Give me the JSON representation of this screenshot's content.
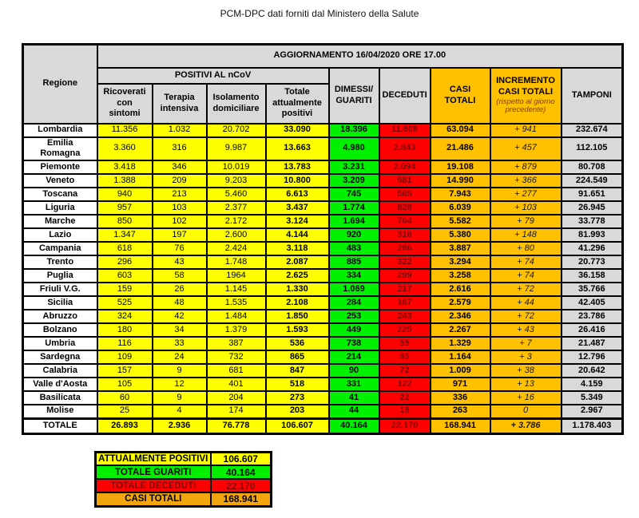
{
  "page_title": "PCM-DPC dati forniti dal Ministero della Salute",
  "colors": {
    "yellow": "#FFFF00",
    "green": "#00F000",
    "red": "#FF0000",
    "gold": "#FFC000",
    "gray": "#D9D9D9",
    "dark_red_text": "#7F0000",
    "summary_orange": "#F2A50C",
    "header_subnote_text": "#833C00"
  },
  "table": {
    "banner": "AGGIORNAMENTO 16/04/2020 ORE 17.00",
    "region_header": "Regione",
    "group_header": "POSITIVI AL nCoV",
    "headers": {
      "ricoverati": "Ricoverati con sintomi",
      "terapia": "Terapia intensiva",
      "isolamento": "Isolamento domiciliare",
      "totale_positivi": "Totale attualmente positivi",
      "dimessi": "DIMESSI/ GUARITI",
      "deceduti": "DECEDUTI",
      "casi_totali": "CASI TOTALI",
      "incremento": "INCREMENTO CASI  TOTALI",
      "incremento_note": "(rispetto al giorno precedente)",
      "tamponi": "TAMPONI"
    },
    "rows": [
      {
        "region": "Lombardia",
        "values": [
          "11.356",
          "1.032",
          "20.702",
          "33.090",
          "18.396",
          "11.608",
          "63.094",
          "+ 941",
          "232.674"
        ]
      },
      {
        "region": "Emilia Romagna",
        "values": [
          "3.360",
          "316",
          "9.987",
          "13.663",
          "4.980",
          "2.843",
          "21.486",
          "+ 457",
          "112.105"
        ]
      },
      {
        "region": "Piemonte",
        "values": [
          "3.418",
          "346",
          "10.019",
          "13.783",
          "3.231",
          "2.094",
          "19.108",
          "+ 879",
          "80.708"
        ]
      },
      {
        "region": "Veneto",
        "values": [
          "1.388",
          "209",
          "9.203",
          "10.800",
          "3.209",
          "981",
          "14.990",
          "+ 366",
          "224.549"
        ]
      },
      {
        "region": "Toscana",
        "values": [
          "940",
          "213",
          "5.460",
          "6.613",
          "745",
          "585",
          "7.943",
          "+ 277",
          "91.651"
        ]
      },
      {
        "region": "Liguria",
        "values": [
          "957",
          "103",
          "2.377",
          "3.437",
          "1.774",
          "828",
          "6.039",
          "+ 103",
          "26.945"
        ]
      },
      {
        "region": "Marche",
        "values": [
          "850",
          "102",
          "2.172",
          "3.124",
          "1.694",
          "764",
          "5.582",
          "+ 79",
          "33.778"
        ]
      },
      {
        "region": "Lazio",
        "values": [
          "1.347",
          "197",
          "2.600",
          "4.144",
          "920",
          "316",
          "5.380",
          "+ 148",
          "81.993"
        ]
      },
      {
        "region": "Campania",
        "values": [
          "618",
          "76",
          "2.424",
          "3.118",
          "483",
          "286",
          "3.887",
          "+ 80",
          "41.296"
        ]
      },
      {
        "region": "Trento",
        "values": [
          "296",
          "43",
          "1.748",
          "2.087",
          "885",
          "322",
          "3.294",
          "+ 74",
          "20.773"
        ]
      },
      {
        "region": "Puglia",
        "values": [
          "603",
          "58",
          "1964",
          "2.625",
          "334",
          "299",
          "3.258",
          "+ 74",
          "36.158"
        ]
      },
      {
        "region": "Friuli V.G.",
        "values": [
          "159",
          "26",
          "1.145",
          "1.330",
          "1.069",
          "217",
          "2.616",
          "+ 72",
          "35.766"
        ]
      },
      {
        "region": "Sicilia",
        "values": [
          "525",
          "48",
          "1.535",
          "2.108",
          "284",
          "187",
          "2.579",
          "+ 44",
          "42.405"
        ]
      },
      {
        "region": "Abruzzo",
        "values": [
          "324",
          "42",
          "1.484",
          "1.850",
          "253",
          "243",
          "2.346",
          "+ 72",
          "23.786"
        ]
      },
      {
        "region": "Bolzano",
        "values": [
          "180",
          "34",
          "1.379",
          "1.593",
          "449",
          "225",
          "2.267",
          "+ 43",
          "26.416"
        ]
      },
      {
        "region": "Umbria",
        "values": [
          "116",
          "33",
          "387",
          "536",
          "738",
          "55",
          "1.329",
          "+ 7",
          "21.487"
        ]
      },
      {
        "region": "Sardegna",
        "values": [
          "109",
          "24",
          "732",
          "865",
          "214",
          "85",
          "1.164",
          "+ 3",
          "12.796"
        ]
      },
      {
        "region": "Calabria",
        "values": [
          "157",
          "9",
          "681",
          "847",
          "90",
          "72",
          "1.009",
          "+ 38",
          "20.642"
        ]
      },
      {
        "region": "Valle d'Aosta",
        "values": [
          "105",
          "12",
          "401",
          "518",
          "331",
          "122",
          "971",
          "+ 13",
          "4.159"
        ]
      },
      {
        "region": "Basilicata",
        "values": [
          "60",
          "9",
          "204",
          "273",
          "41",
          "22",
          "336",
          "+ 16",
          "5.349"
        ]
      },
      {
        "region": "Molise",
        "values": [
          "25",
          "4",
          "174",
          "203",
          "44",
          "16",
          "263",
          "0",
          "2.967"
        ]
      }
    ],
    "totale": {
      "region": "TOTALE",
      "values": [
        "26.893",
        "2.936",
        "76.778",
        "106.607",
        "40.164",
        "22.170",
        "168.941",
        "+ 3.786",
        "1.178.403"
      ]
    }
  },
  "summary": {
    "rows": [
      {
        "label": "ATTUALMENTE POSITIVI",
        "value": "106.607",
        "bg": "#FFFF00",
        "fg": "#000000"
      },
      {
        "label": "TOTALE GUARITI",
        "value": "40.164",
        "bg": "#00F000",
        "fg": "#000000"
      },
      {
        "label": "TOTALE DECEDUTI",
        "value": "22.170",
        "bg": "#FF0000",
        "fg": "#7F0000"
      },
      {
        "label": "CASI TOTALI",
        "value": "168.941",
        "bg": "#F2A50C",
        "fg": "#000000"
      }
    ]
  }
}
